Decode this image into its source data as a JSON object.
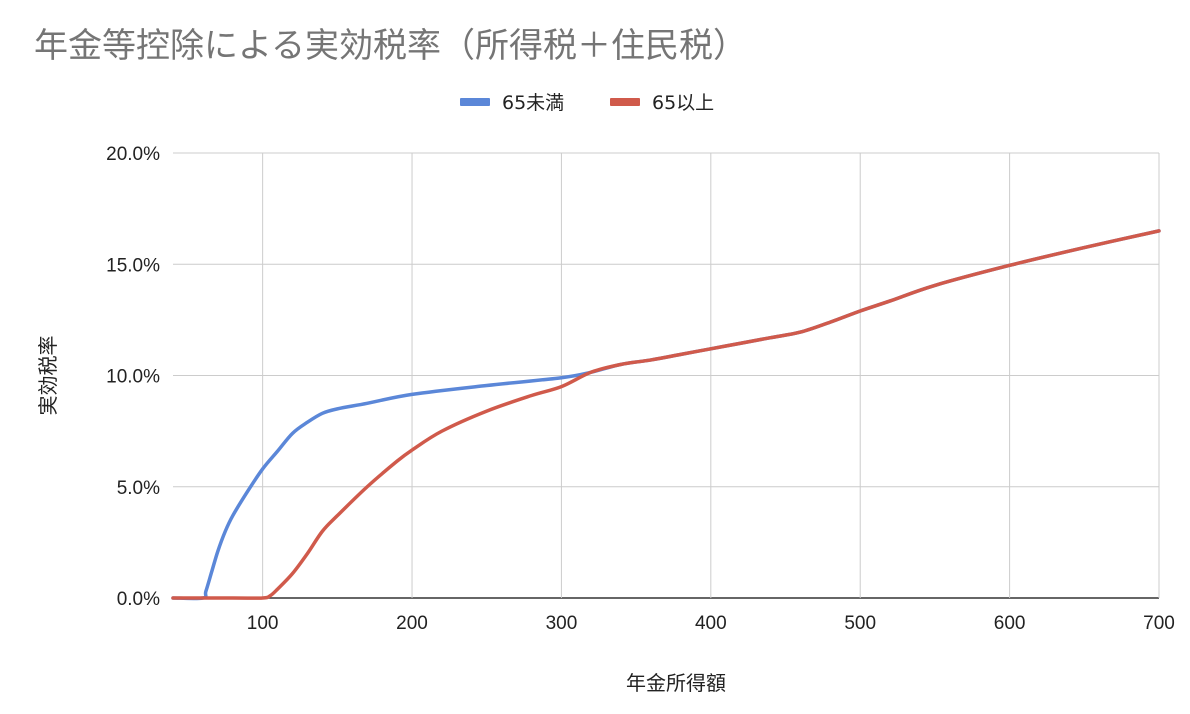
{
  "chart_data": {
    "type": "line",
    "title": "年金等控除による実効税率（所得税＋住民税）",
    "xlabel": "年金所得額",
    "ylabel": "実効税率",
    "xlim": [
      40,
      700
    ],
    "ylim": [
      0,
      0.2
    ],
    "x_ticks": [
      100,
      200,
      300,
      400,
      500,
      600,
      700
    ],
    "y_ticks": [
      0,
      0.05,
      0.1,
      0.15,
      0.2
    ],
    "y_tick_labels": [
      "0.0%",
      "5.0%",
      "10.0%",
      "15.0%",
      "20.0%"
    ],
    "grid": true,
    "legend_position": "top-center",
    "series": [
      {
        "name": "65未満",
        "color": "#5b87d8",
        "points": [
          [
            40,
            0
          ],
          [
            60,
            0
          ],
          [
            62,
            0.003
          ],
          [
            66,
            0.012
          ],
          [
            70,
            0.021
          ],
          [
            75,
            0.03
          ],
          [
            80,
            0.037
          ],
          [
            90,
            0.048
          ],
          [
            100,
            0.058
          ],
          [
            110,
            0.066
          ],
          [
            120,
            0.074
          ],
          [
            130,
            0.079
          ],
          [
            140,
            0.083
          ],
          [
            150,
            0.085
          ],
          [
            170,
            0.0875
          ],
          [
            200,
            0.0915
          ],
          [
            250,
            0.0955
          ],
          [
            300,
            0.099
          ],
          [
            320,
            0.1015
          ],
          [
            340,
            0.105
          ],
          [
            360,
            0.107
          ],
          [
            380,
            0.1095
          ],
          [
            400,
            0.112
          ],
          [
            420,
            0.1145
          ],
          [
            440,
            0.117
          ],
          [
            460,
            0.1195
          ],
          [
            480,
            0.124
          ],
          [
            500,
            0.129
          ],
          [
            520,
            0.1335
          ],
          [
            550,
            0.1405
          ],
          [
            600,
            0.1495
          ],
          [
            650,
            0.1575
          ],
          [
            700,
            0.165
          ]
        ]
      },
      {
        "name": "65以上",
        "color": "#d05a4b",
        "points": [
          [
            40,
            0
          ],
          [
            80,
            0
          ],
          [
            100,
            0
          ],
          [
            105,
            0.001
          ],
          [
            110,
            0.004
          ],
          [
            120,
            0.011
          ],
          [
            130,
            0.02
          ],
          [
            140,
            0.03
          ],
          [
            150,
            0.037
          ],
          [
            170,
            0.05
          ],
          [
            190,
            0.0615
          ],
          [
            200,
            0.0665
          ],
          [
            220,
            0.075
          ],
          [
            250,
            0.084
          ],
          [
            280,
            0.091
          ],
          [
            300,
            0.095
          ],
          [
            320,
            0.1015
          ],
          [
            340,
            0.105
          ],
          [
            360,
            0.107
          ],
          [
            380,
            0.1095
          ],
          [
            400,
            0.112
          ],
          [
            420,
            0.1145
          ],
          [
            440,
            0.117
          ],
          [
            460,
            0.1195
          ],
          [
            480,
            0.124
          ],
          [
            500,
            0.129
          ],
          [
            520,
            0.1335
          ],
          [
            550,
            0.1405
          ],
          [
            600,
            0.1495
          ],
          [
            650,
            0.1575
          ],
          [
            700,
            0.165
          ]
        ]
      }
    ]
  }
}
